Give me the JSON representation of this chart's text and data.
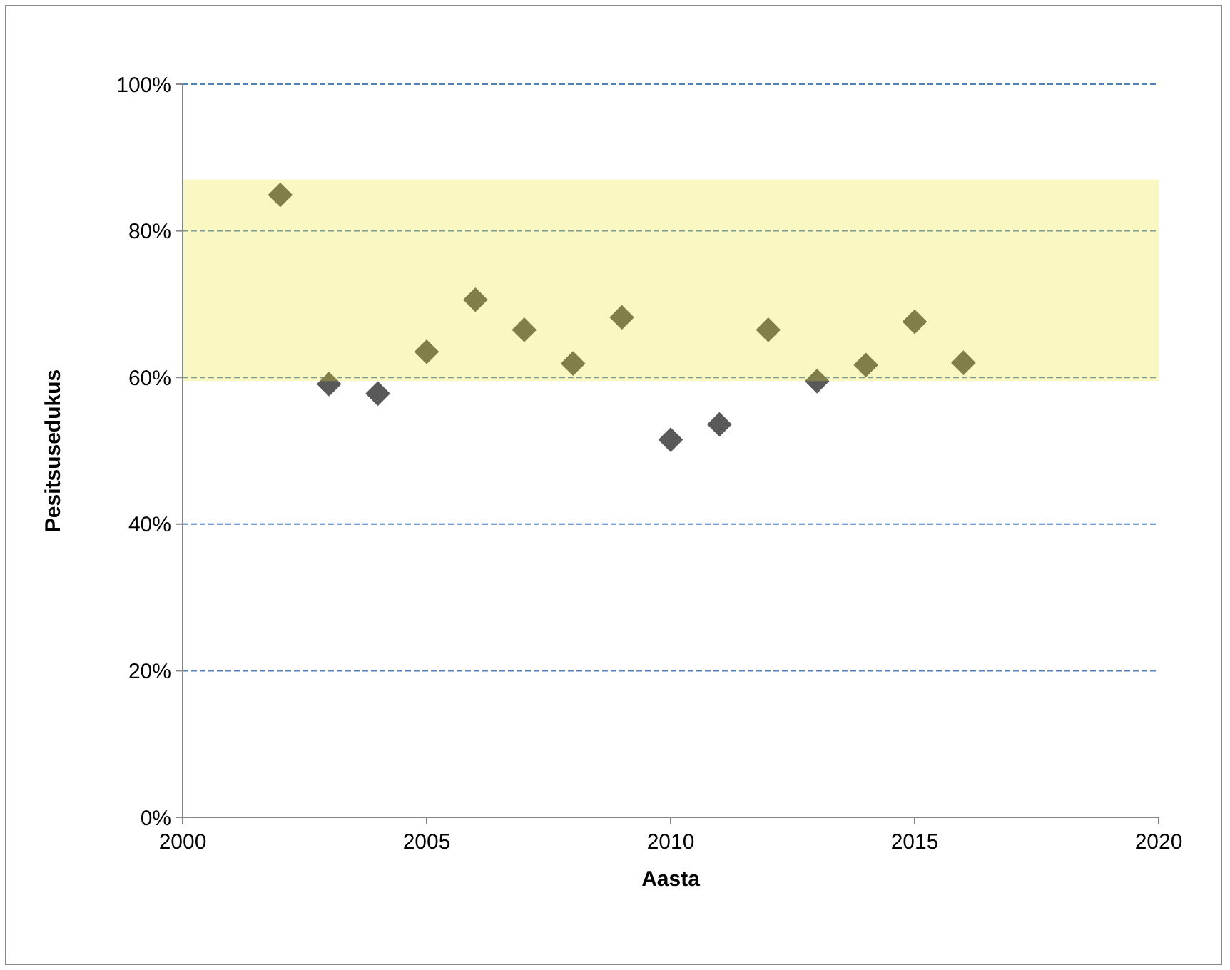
{
  "chart_data": {
    "type": "scatter",
    "xlabel": "Aasta",
    "ylabel": "Pesitsusedukus",
    "x": [
      2002,
      2003,
      2004,
      2005,
      2006,
      2007,
      2008,
      2009,
      2010,
      2011,
      2012,
      2013,
      2014,
      2015,
      2016
    ],
    "series": [
      {
        "color": "#595959",
        "values": [
          84.9,
          59.1,
          57.8,
          63.5,
          70.6,
          66.5,
          61.9,
          68.2,
          51.5,
          53.6,
          66.5,
          59.5,
          61.7,
          67.6,
          62.0
        ]
      }
    ],
    "xlim": [
      2000,
      2020
    ],
    "xticks": [
      2000,
      2005,
      2010,
      2015,
      2020
    ],
    "ylim": [
      0,
      100
    ],
    "yticks": [
      {
        "value": 0,
        "label": "0%"
      },
      {
        "value": 20,
        "label": "20%"
      },
      {
        "value": 40,
        "label": "40%"
      },
      {
        "value": 60,
        "label": "60%"
      },
      {
        "value": 80,
        "label": "80%"
      },
      {
        "value": 100,
        "label": "100%"
      }
    ],
    "bands": [
      {
        "axis": "y",
        "from": 59.5,
        "to": 87,
        "color": "#e9e51e"
      }
    ],
    "grid": "y",
    "marker": "diamond"
  }
}
